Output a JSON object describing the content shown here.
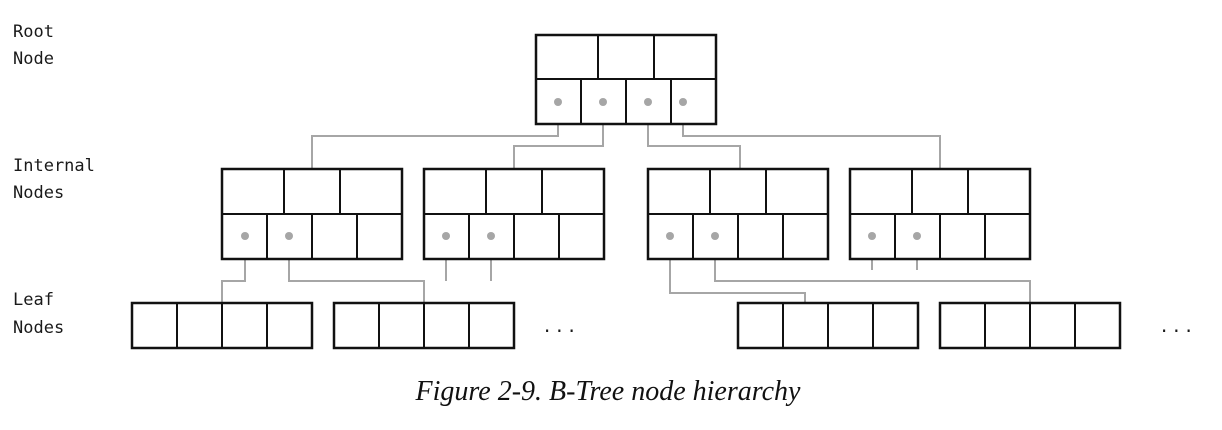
{
  "labels": {
    "root": [
      "Root",
      "Node"
    ],
    "internal": [
      "Internal",
      "Nodes"
    ],
    "leaf": [
      "Leaf",
      "Nodes"
    ]
  },
  "ellipsis": "...",
  "caption": "Figure 2-9. B-Tree node hierarchy",
  "colors": {
    "node_stroke": "#111111",
    "link": "#a6a6a6",
    "text": "#1a1a1a"
  }
}
